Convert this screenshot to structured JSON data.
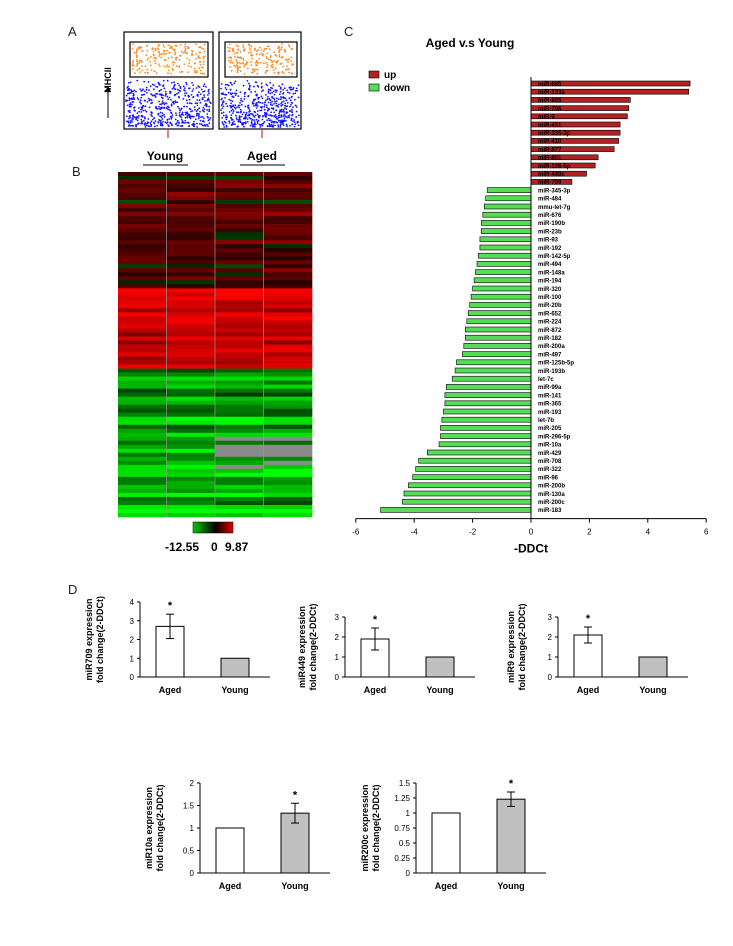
{
  "panels": {
    "a": "A",
    "b": "B",
    "c": "C",
    "d": "D"
  },
  "flow": {
    "ylabel": "MHCII"
  },
  "heatmap": {
    "group_young": "Young",
    "group_aged": "Aged",
    "scale_min": "-12.55",
    "scale_mid": "0",
    "scale_max": "9.87"
  },
  "colors": {
    "up": "#b22222",
    "down": "#55dd55",
    "bar_aged": "#ffffff",
    "bar_young": "#c0c0c0"
  },
  "chart_data": [
    {
      "type": "bar",
      "orientation": "horizontal",
      "title": "Aged v.s Young",
      "xlabel": "-DDCt",
      "xlim": [
        -6,
        6
      ],
      "xticks": [
        -6,
        -4,
        -2,
        0,
        2,
        4,
        6
      ],
      "legend": [
        {
          "label": "up",
          "color": "#b22222"
        },
        {
          "label": "down",
          "color": "#55dd55"
        }
      ],
      "categories": [
        "miR-685",
        "miR-133a",
        "miR-805",
        "miR-706",
        "miR-9",
        "miR-451",
        "miR-335-3p",
        "miR-410",
        "miR-877",
        "miR-801",
        "miR-126-5p",
        "miR-449c",
        "miR-709",
        "miR-345-3p",
        "miR-484",
        "mmu-let-7g",
        "miR-676",
        "miR-190b",
        "miR-23b",
        "miR-93",
        "miR-192",
        "miR-142-5p",
        "miR-494",
        "miR-148a",
        "miR-194",
        "miR-320",
        "miR-100",
        "miR-20b",
        "miR-652",
        "miR-224",
        "miR-872",
        "miR-182",
        "miR-200a",
        "miR-497",
        "miR-125b-5p",
        "miR-193b",
        "let-7c",
        "miR-99a",
        "miR-141",
        "miR-365",
        "miR-193",
        "let-7b",
        "miR-205",
        "miR-296-5p",
        "miR-10a",
        "miR-429",
        "miR-708",
        "miR-322",
        "miR-96",
        "miR-200b",
        "miR-130a",
        "miR-200c",
        "miR-183"
      ],
      "values": [
        5.45,
        5.4,
        3.4,
        3.35,
        3.3,
        3.05,
        3.05,
        3.0,
        2.85,
        2.3,
        2.2,
        1.9,
        1.4,
        -1.5,
        -1.55,
        -1.6,
        -1.65,
        -1.7,
        -1.7,
        -1.75,
        -1.75,
        -1.8,
        -1.85,
        -1.9,
        -1.95,
        -2.0,
        -2.05,
        -2.1,
        -2.15,
        -2.2,
        -2.25,
        -2.25,
        -2.3,
        -2.35,
        -2.55,
        -2.6,
        -2.7,
        -2.9,
        -2.95,
        -2.95,
        -3.0,
        -3.05,
        -3.1,
        -3.1,
        -3.15,
        -3.55,
        -3.85,
        -3.95,
        -4.05,
        -4.2,
        -4.35,
        -4.4,
        -5.15
      ]
    },
    {
      "type": "bar",
      "ylabel": "miR709 expression fold change(2-DDCt)",
      "categories": [
        "Aged",
        "Young"
      ],
      "values": [
        2.7,
        1.0
      ],
      "errors": [
        0.65,
        0
      ],
      "ylim": [
        0,
        4
      ],
      "yticks": [
        0,
        1,
        2,
        3,
        4
      ],
      "significance": [
        "*",
        ""
      ]
    },
    {
      "type": "bar",
      "ylabel": "miR449 expression fold change(2-DDCt)",
      "categories": [
        "Aged",
        "Young"
      ],
      "values": [
        1.9,
        1.0
      ],
      "errors": [
        0.55,
        0
      ],
      "ylim": [
        0,
        3
      ],
      "yticks": [
        0,
        1,
        2,
        3
      ],
      "significance": [
        "*",
        ""
      ]
    },
    {
      "type": "bar",
      "ylabel": "miR9 expression fold change(2-DDCt)",
      "categories": [
        "Aged",
        "Young"
      ],
      "values": [
        2.1,
        1.0
      ],
      "errors": [
        0.4,
        0
      ],
      "ylim": [
        0,
        3
      ],
      "yticks": [
        0,
        1,
        2,
        3
      ],
      "significance": [
        "*",
        ""
      ]
    },
    {
      "type": "bar",
      "ylabel": "miR10a expression fold change(2-DDCt)",
      "categories": [
        "Aged",
        "Young"
      ],
      "values": [
        1.0,
        1.33
      ],
      "errors": [
        0,
        0.22
      ],
      "ylim": [
        0,
        2
      ],
      "yticks": [
        0,
        0.5,
        1,
        1.5,
        2
      ],
      "significance": [
        "",
        "*"
      ]
    },
    {
      "type": "bar",
      "ylabel": "miR200c expression fold change(2-DDCt)",
      "categories": [
        "Aged",
        "Young"
      ],
      "values": [
        1.0,
        1.23
      ],
      "errors": [
        0,
        0.12
      ],
      "ylim": [
        0,
        1.5
      ],
      "yticks": [
        0,
        0.25,
        0.5,
        0.75,
        1,
        1.25,
        1.5
      ],
      "significance": [
        "",
        "*"
      ]
    }
  ]
}
